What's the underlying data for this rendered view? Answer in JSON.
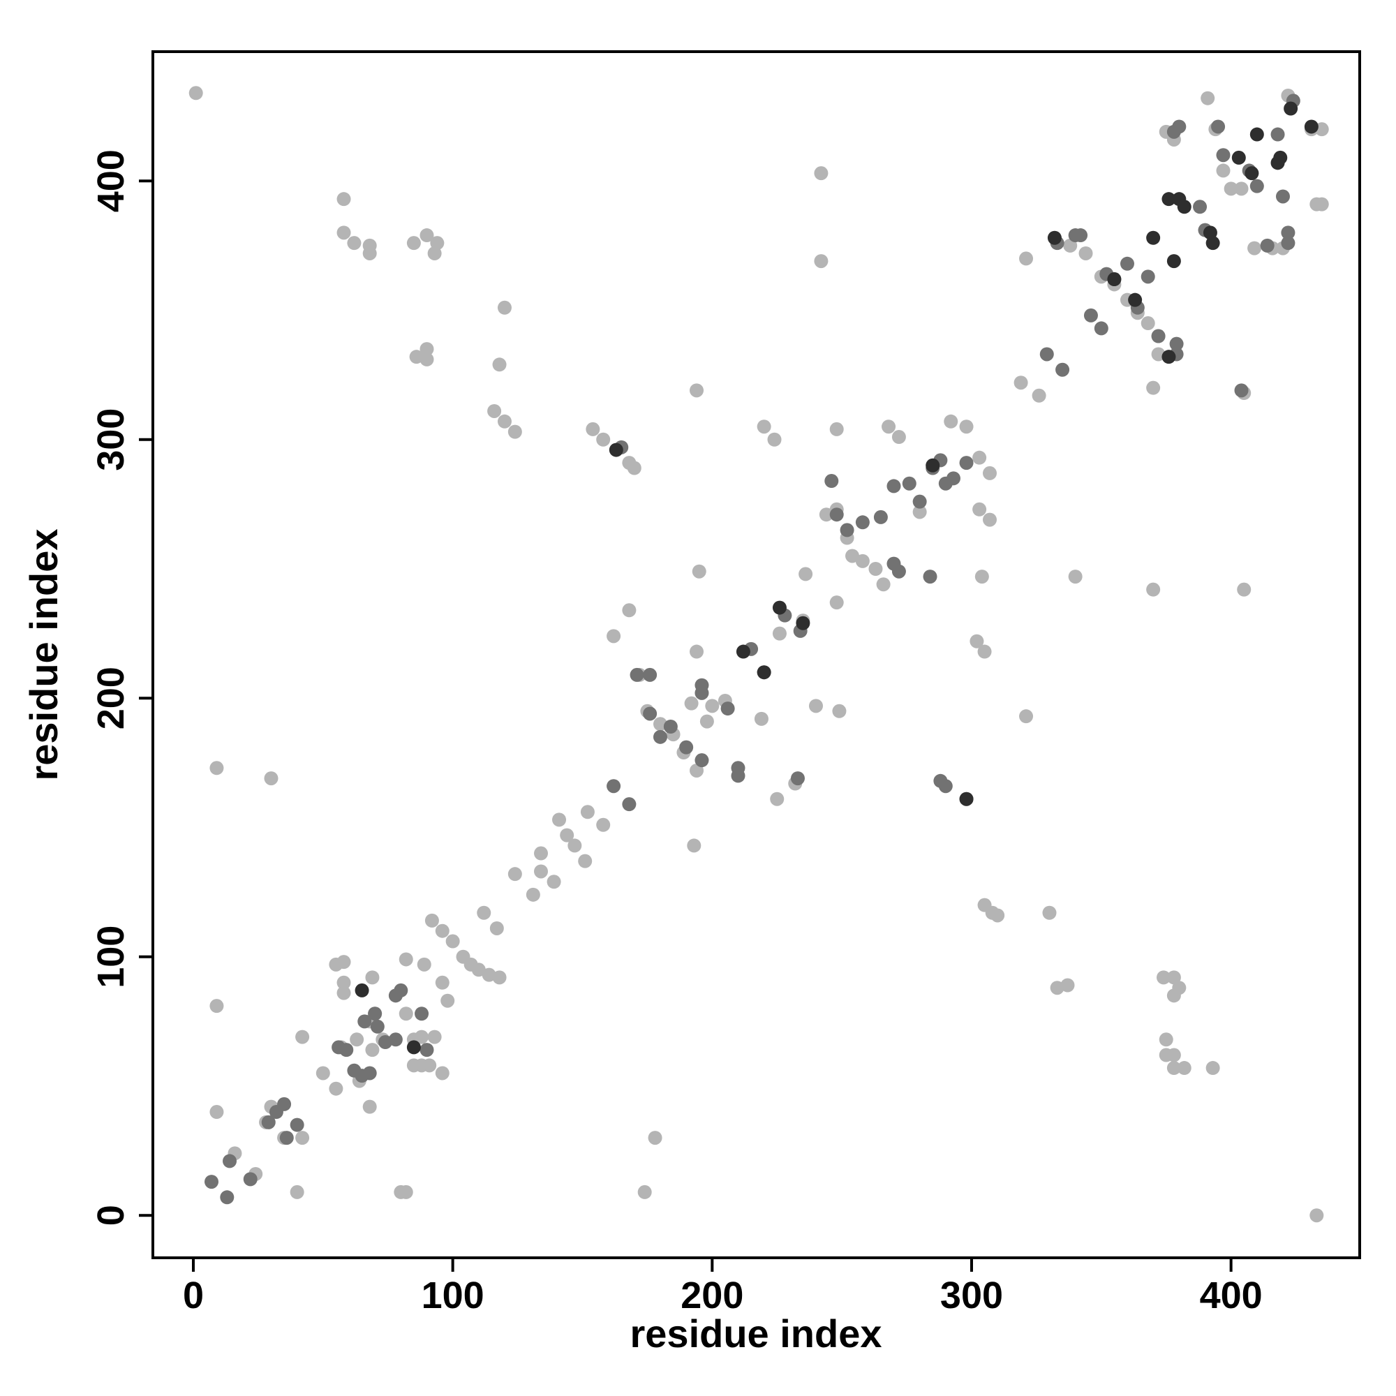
{
  "chart_data": {
    "type": "scatter",
    "x_label": "residue index",
    "y_label": "residue index",
    "xlim": [
      -15.6,
      449.6
    ],
    "ylim": [
      -16.4,
      450
    ],
    "xticks": [
      0,
      100,
      200,
      300,
      400
    ],
    "yticks": [
      0,
      100,
      200,
      300,
      400
    ],
    "series": [
      {
        "color": "#b4b4b4",
        "x": [
          1,
          9,
          9,
          9,
          30,
          40,
          42,
          16,
          24,
          28,
          30,
          35,
          42,
          50,
          55,
          55,
          57,
          58,
          58,
          58,
          63,
          64,
          68,
          69,
          69,
          68,
          70,
          73,
          80,
          82,
          82,
          82,
          85,
          85,
          88,
          88,
          89,
          91,
          93,
          96,
          96,
          98,
          92,
          96,
          100,
          104,
          107,
          110,
          112,
          114,
          117,
          118,
          124,
          131,
          134,
          134,
          139,
          141,
          144,
          147,
          151,
          152,
          158,
          162,
          168,
          172,
          175,
          180,
          185,
          189,
          194,
          195,
          192,
          198,
          200,
          205,
          219,
          220,
          224,
          225,
          232,
          236,
          240,
          242,
          242,
          244,
          248,
          248,
          248,
          252,
          254,
          258,
          263,
          266,
          268,
          272,
          280,
          292,
          298,
          303,
          307,
          303,
          307,
          302,
          305,
          304,
          308,
          305,
          310,
          319,
          321,
          321,
          326,
          330,
          333,
          337,
          340,
          338,
          344,
          350,
          355,
          360,
          364,
          368,
          372,
          372,
          375,
          378,
          370,
          370,
          374,
          378,
          378,
          380,
          375,
          375,
          378,
          382,
          393,
          378,
          391,
          394,
          397,
          400,
          404,
          405,
          405,
          409,
          416,
          420,
          422,
          431,
          435,
          433,
          435,
          433,
          58,
          58,
          62,
          68,
          68,
          85,
          90,
          93,
          94,
          86,
          90,
          90,
          120,
          118,
          116,
          120,
          124,
          154,
          158,
          168,
          170,
          193,
          194,
          194,
          249,
          235,
          178,
          174,
          226
        ],
        "values": [
          434,
          173,
          81,
          40,
          169,
          9,
          69,
          24,
          16,
          36,
          42,
          30,
          30,
          55,
          49,
          97,
          65,
          98,
          90,
          86,
          68,
          52,
          75,
          92,
          64,
          42,
          78,
          68,
          9,
          9,
          99,
          78,
          58,
          68,
          69,
          58,
          97,
          58,
          69,
          55,
          90,
          83,
          114,
          110,
          106,
          100,
          97,
          95,
          117,
          93,
          111,
          92,
          132,
          124,
          133,
          140,
          129,
          153,
          147,
          143,
          137,
          156,
          151,
          224,
          234,
          209,
          195,
          190,
          186,
          179,
          172,
          249,
          198,
          191,
          197,
          199,
          192,
          305,
          300,
          161,
          167,
          248,
          197,
          403,
          369,
          271,
          273,
          237,
          304,
          262,
          255,
          253,
          250,
          244,
          305,
          301,
          272,
          307,
          305,
          293,
          287,
          273,
          269,
          222,
          218,
          247,
          117,
          120,
          116,
          322,
          193,
          370,
          317,
          117,
          88,
          89,
          247,
          375,
          372,
          363,
          360,
          354,
          349,
          345,
          340,
          333,
          419,
          416,
          320,
          242,
          92,
          92,
          85,
          88,
          68,
          62,
          57,
          57,
          57,
          62,
          432,
          420,
          404,
          397,
          397,
          318,
          242,
          374,
          374,
          374,
          433,
          420,
          420,
          391,
          391,
          0,
          393,
          380,
          376,
          375,
          372,
          376,
          379,
          372,
          376,
          332,
          335,
          331,
          351,
          329,
          311,
          307,
          303,
          304,
          300,
          291,
          289,
          143,
          218,
          319,
          195,
          230,
          30,
          9,
          225
        ]
      },
      {
        "color": "#727272",
        "x": [
          7,
          13,
          14,
          22,
          29,
          32,
          35,
          36,
          40,
          56,
          59,
          62,
          65,
          66,
          68,
          70,
          71,
          74,
          78,
          78,
          88,
          90,
          162,
          165,
          168,
          171,
          176,
          176,
          180,
          184,
          190,
          196,
          196,
          196,
          206,
          210,
          210,
          215,
          220,
          228,
          234,
          246,
          248,
          252,
          258,
          265,
          270,
          272,
          270,
          276,
          280,
          284,
          285,
          288,
          290,
          293,
          298,
          298,
          329,
          333,
          335,
          340,
          342,
          346,
          350,
          352,
          355,
          364,
          368,
          372,
          379,
          379,
          380,
          378,
          388,
          390,
          395,
          397,
          404,
          407,
          410,
          418,
          420,
          422,
          422,
          424,
          414,
          288,
          290,
          233,
          360,
          80
        ],
        "values": [
          13,
          7,
          21,
          14,
          36,
          40,
          43,
          30,
          35,
          65,
          64,
          56,
          54,
          75,
          55,
          78,
          73,
          67,
          85,
          68,
          78,
          64,
          166,
          297,
          159,
          209,
          209,
          194,
          185,
          189,
          181,
          176,
          205,
          202,
          196,
          173,
          170,
          219,
          210,
          232,
          226,
          284,
          271,
          265,
          268,
          270,
          252,
          249,
          282,
          283,
          276,
          247,
          289,
          292,
          283,
          285,
          161,
          291,
          333,
          376,
          327,
          379,
          379,
          348,
          343,
          364,
          362,
          351,
          363,
          340,
          333,
          337,
          421,
          419,
          390,
          381,
          421,
          410,
          319,
          404,
          398,
          418,
          394,
          380,
          376,
          431,
          375,
          168,
          166,
          169,
          368,
          87
        ]
      },
      {
        "color": "#2e2e2e",
        "x": [
          65,
          85,
          163,
          226,
          235,
          220,
          212,
          298,
          355,
          363,
          376,
          378,
          376,
          380,
          382,
          392,
          393,
          403,
          408,
          410,
          418,
          419,
          423,
          431,
          285,
          370,
          332
        ],
        "values": [
          87,
          65,
          296,
          235,
          229,
          210,
          218,
          161,
          362,
          354,
          332,
          369,
          393,
          393,
          390,
          380,
          376,
          409,
          403,
          418,
          407,
          409,
          428,
          421,
          290,
          378,
          378
        ]
      }
    ]
  }
}
